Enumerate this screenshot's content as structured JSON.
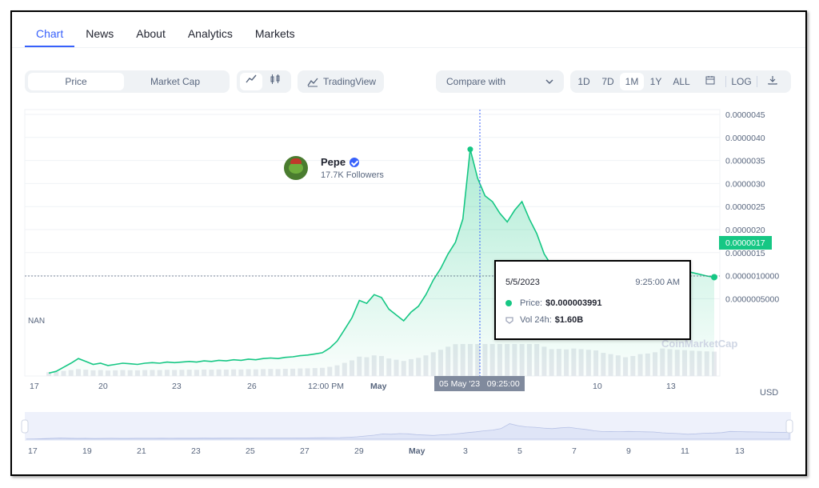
{
  "tabs": [
    "Chart",
    "News",
    "About",
    "Analytics",
    "Markets"
  ],
  "toolbar": {
    "type_options": [
      "Price",
      "Market Cap"
    ],
    "tradingview_label": "TradingView",
    "compare_label": "Compare with",
    "ranges": [
      "1D",
      "7D",
      "1M",
      "1Y",
      "ALL"
    ],
    "active_range": "1M",
    "log_label": "LOG"
  },
  "coin": {
    "name": "Pepe",
    "followers": "17.7K Followers"
  },
  "currency": "USD",
  "nan_label": "NAN",
  "price_badge": "0.0000017",
  "crosshair_label": "05 May '23   09:25:00",
  "watermark": "CoinMarketCap",
  "tooltip": {
    "date": "5/5/2023",
    "time": "9:25:00 AM",
    "price_label": "Price:",
    "price_value": "$0.000003991",
    "vol_label": "Vol 24h:",
    "vol_value": "$1.60B"
  },
  "colors": {
    "accent": "#3861fb",
    "line": "#16c784",
    "text": "#222531",
    "muted": "#58667e"
  },
  "chart_data": {
    "type": "area",
    "y_ticks": [
      "0.0000045",
      "0.0000040",
      "0.0000035",
      "0.0000030",
      "0.0000025",
      "0.0000020",
      "0.0000015",
      "0.0000010000",
      "0.0000005000"
    ],
    "x_ticks": [
      "17",
      "20",
      "23",
      "26",
      "12:00 PM",
      "May",
      "10",
      "13"
    ],
    "nav_ticks": [
      "17",
      "19",
      "21",
      "23",
      "25",
      "27",
      "29",
      "May",
      "3",
      "5",
      "7",
      "9",
      "11",
      "13"
    ],
    "ylim": [
      0,
      4.5e-06
    ],
    "series": [
      {
        "x": [
          0,
          1,
          2,
          3,
          4,
          5,
          6,
          7,
          8,
          9,
          10,
          11,
          12,
          13,
          14,
          15,
          16,
          17,
          18,
          19,
          20,
          21,
          22,
          23,
          24,
          25,
          26,
          27,
          28,
          29,
          30,
          31,
          32,
          33,
          34,
          35,
          36,
          37,
          38,
          39,
          40,
          41,
          42,
          43,
          44,
          45,
          46,
          47,
          48,
          49,
          50,
          51,
          52,
          53,
          54,
          55,
          56,
          57,
          58,
          59,
          60,
          61,
          62,
          63,
          64,
          65,
          66,
          67,
          68,
          69,
          70,
          71,
          72,
          73,
          74,
          75,
          76,
          77,
          78,
          79,
          80,
          81,
          82,
          83,
          84,
          85,
          86,
          87,
          88,
          89,
          90
        ],
        "y": [
          5e-08,
          8e-08,
          1.5e-07,
          2.2e-07,
          3e-07,
          2.5e-07,
          2e-07,
          2.2e-07,
          1.8e-07,
          2e-07,
          2.2e-07,
          2.1e-07,
          2e-07,
          2.2e-07,
          2.3e-07,
          2.2e-07,
          2.4e-07,
          2.3e-07,
          2.4e-07,
          2.5e-07,
          2.4e-07,
          2.6e-07,
          2.5e-07,
          2.7e-07,
          2.6e-07,
          2.8e-07,
          2.7e-07,
          2.9e-07,
          2.8e-07,
          3e-07,
          3.1e-07,
          3e-07,
          3.2e-07,
          3.3e-07,
          3.5e-07,
          3.6e-07,
          3.8e-07,
          4e-07,
          4.8e-07,
          6e-07,
          8e-07,
          1e-06,
          1.3e-06,
          1.25e-06,
          1.4e-06,
          1.35e-06,
          1.15e-06,
          1.05e-06,
          9.5e-07,
          1.1e-06,
          1.2e-06,
          1.4e-06,
          1.65e-06,
          1.85e-06,
          2.1e-06,
          2.3e-06,
          2.7e-06,
          3.9e-06,
          3.4e-06,
          3.1e-06,
          3e-06,
          2.8e-06,
          2.65e-06,
          2.85e-06,
          3e-06,
          2.7e-06,
          2.45e-06,
          2.1e-06,
          1.9e-06,
          1.92e-06,
          1.88e-06,
          1.95e-06,
          1.9e-06,
          1.85e-06,
          1.8e-06,
          1.6e-06,
          1.5e-06,
          1.4e-06,
          1.25e-06,
          1.35e-06,
          1.5e-06,
          1.55e-06,
          1.65e-06,
          1.95e-06,
          1.9e-06,
          1.85e-06,
          1.82e-06,
          1.78e-06,
          1.75e-06,
          1.72e-06,
          1.7e-06
        ]
      }
    ]
  }
}
